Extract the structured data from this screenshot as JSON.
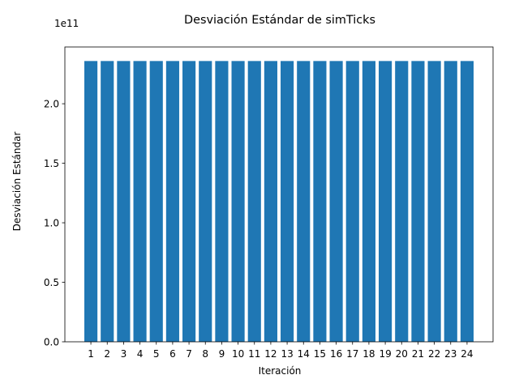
{
  "chart_data": {
    "type": "bar",
    "title": "Desviación Estándar de simTicks",
    "xlabel": "Iteración",
    "ylabel": "Desviación Estándar",
    "y_offset_label": "1e11",
    "y_scale": 100000000000,
    "categories": [
      "1",
      "2",
      "3",
      "4",
      "5",
      "6",
      "7",
      "8",
      "9",
      "10",
      "11",
      "12",
      "13",
      "14",
      "15",
      "16",
      "17",
      "18",
      "19",
      "20",
      "21",
      "22",
      "23",
      "24"
    ],
    "values": [
      235900000000,
      235900000000,
      235900000000,
      235900000000,
      235900000000,
      235900000000,
      235900000000,
      235900000000,
      235900000000,
      235900000000,
      235900000000,
      235900000000,
      235900000000,
      235900000000,
      235900000000,
      235900000000,
      235900000000,
      235900000000,
      235900000000,
      235900000000,
      235900000000,
      235900000000,
      235900000000,
      235900000000
    ],
    "ylim": [
      0,
      247700000000
    ],
    "yticks": [
      0,
      50000000000,
      100000000000,
      150000000000,
      200000000000
    ],
    "ytick_labels": [
      "0.0",
      "0.5",
      "1.0",
      "1.5",
      "2.0"
    ],
    "bar_color": "#1f77b4",
    "grid": false,
    "legend": "none"
  }
}
